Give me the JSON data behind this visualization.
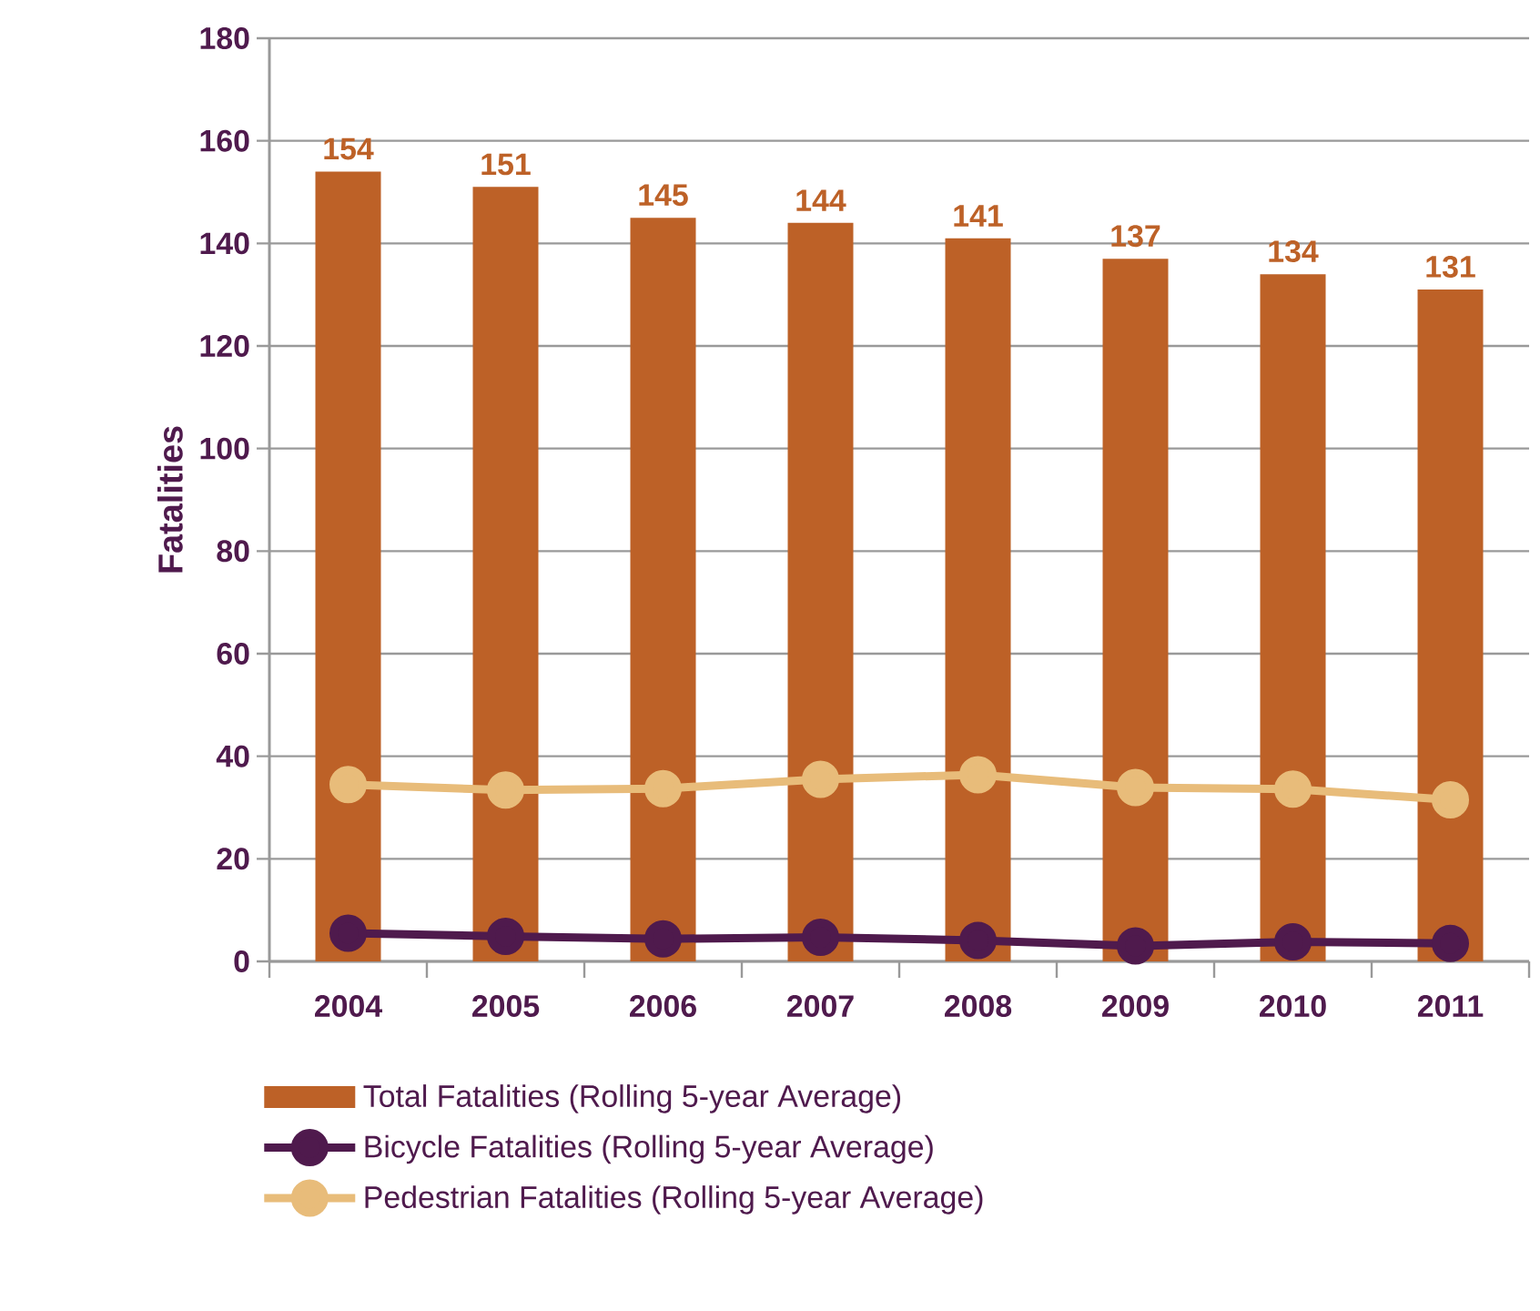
{
  "chart_data": {
    "type": "bar",
    "ylabel": "Fatalities",
    "categories": [
      "2004",
      "2005",
      "2006",
      "2007",
      "2008",
      "2009",
      "2010",
      "2011"
    ],
    "series": [
      {
        "name": "Total Fatalities (Rolling 5-year Average)",
        "color": "#bd6127",
        "values": [
          154,
          151,
          145,
          144,
          141,
          137,
          134,
          131
        ],
        "value_labels": [
          "154",
          "151",
          "145",
          "144",
          "141",
          "137",
          "134",
          "131"
        ]
      },
      {
        "name": "Bicycle Fatalities (Rolling 5-year Average)",
        "type": "line",
        "color": "#4f1a4d",
        "values": [
          5.5,
          4.9,
          4.4,
          4.7,
          4.1,
          3.0,
          3.8,
          3.5
        ]
      },
      {
        "name": "Pedestrian Fatalities (Rolling 5-year Average)",
        "type": "line",
        "color": "#e8bc7a",
        "values": [
          34.5,
          33.4,
          33.7,
          35.5,
          36.4,
          33.9,
          33.6,
          31.5
        ]
      }
    ],
    "ylim": [
      0,
      180
    ],
    "yticks": [
      0,
      20,
      40,
      60,
      80,
      100,
      120,
      140,
      160,
      180
    ],
    "grid": "y",
    "legend": "bottom",
    "marker": "circle",
    "line_style": "solid"
  }
}
